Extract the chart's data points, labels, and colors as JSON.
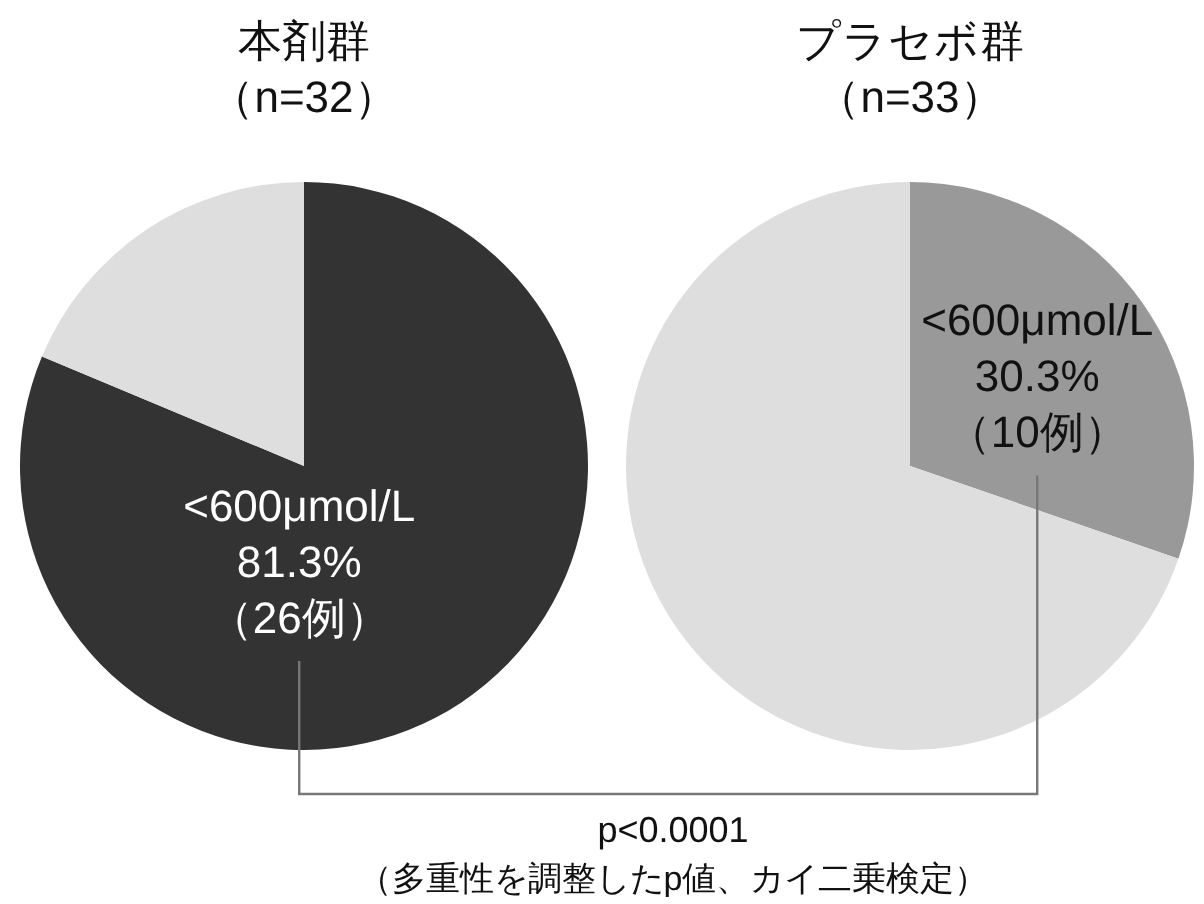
{
  "chart_data": [
    {
      "type": "pie",
      "title": "本剤群",
      "subtitle": "（n=32）",
      "categories": [
        "<600μmol/L",
        null
      ],
      "values": [
        81.3,
        18.7
      ],
      "colors": [
        "#333333",
        "#dedede"
      ],
      "value_labels": [
        "81.3%",
        null
      ],
      "annotations": [
        "（26例）"
      ]
    },
    {
      "type": "pie",
      "title": "プラセボ群",
      "subtitle": "（n=33）",
      "categories": [
        "<600μmol/L",
        null
      ],
      "values": [
        30.3,
        69.7
      ],
      "colors": [
        "#999999",
        "#dedede"
      ],
      "value_labels": [
        "30.3%",
        null
      ],
      "annotations": [
        "（10例）",
        "p<0.0001",
        "（多重性を調整したp値、カイ二乗検定）"
      ]
    }
  ]
}
